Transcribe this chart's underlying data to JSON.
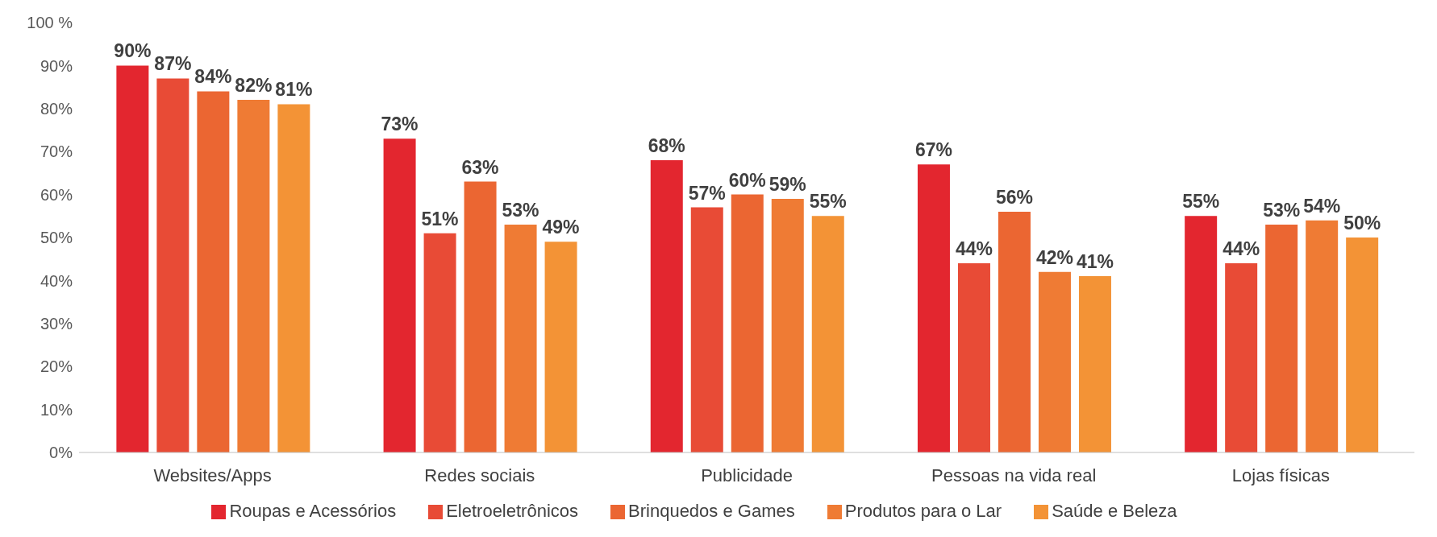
{
  "chart_data": {
    "type": "bar",
    "categories": [
      "Websites/Apps",
      "Redes sociais",
      "Publicidade",
      "Pessoas na vida real",
      "Lojas físicas"
    ],
    "series": [
      {
        "name": "Roupas e Acessórios",
        "color": "#e3262f",
        "values": [
          90,
          73,
          68,
          67,
          55
        ],
        "value_labels": [
          "90%",
          "73%",
          "68%",
          "67%",
          "55%"
        ]
      },
      {
        "name": "Eletroeletrônicos",
        "color": "#e84b36",
        "values": [
          87,
          51,
          57,
          44,
          44
        ],
        "value_labels": [
          "87%",
          "51%",
          "57%",
          "44%",
          "44%"
        ]
      },
      {
        "name": "Brinquedos e Games",
        "color": "#eb6632",
        "values": [
          84,
          63,
          60,
          56,
          53
        ],
        "value_labels": [
          "84%",
          "63%",
          "60%",
          "56%",
          "53%"
        ]
      },
      {
        "name": "Produtos para o Lar",
        "color": "#ef7b34",
        "values": [
          82,
          53,
          59,
          42,
          54
        ],
        "value_labels": [
          "82%",
          "53%",
          "59%",
          "42%",
          "54%"
        ]
      },
      {
        "name": "Saúde e Beleza",
        "color": "#f39336",
        "values": [
          81,
          49,
          55,
          41,
          50
        ],
        "value_labels": [
          "81%",
          "49%",
          "55%",
          "41%",
          "50%"
        ]
      }
    ],
    "ylim": [
      0,
      100
    ],
    "yticks": [
      {
        "value": 0,
        "label": "0%"
      },
      {
        "value": 10,
        "label": "10%"
      },
      {
        "value": 20,
        "label": "20%"
      },
      {
        "value": 30,
        "label": "30%"
      },
      {
        "value": 40,
        "label": "40%"
      },
      {
        "value": 50,
        "label": "50%"
      },
      {
        "value": 60,
        "label": "60%"
      },
      {
        "value": 70,
        "label": "70%"
      },
      {
        "value": 80,
        "label": "80%"
      },
      {
        "value": 90,
        "label": "90%"
      },
      {
        "value": 100,
        "label": "100 %"
      }
    ],
    "grid": false,
    "legend": "bottom"
  }
}
